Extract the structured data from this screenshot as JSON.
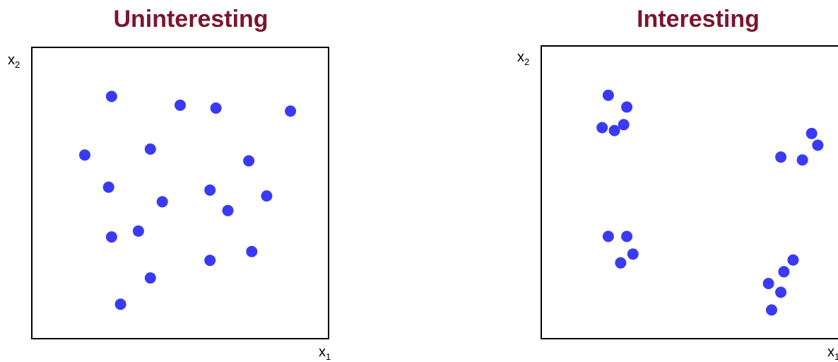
{
  "chart_data": [
    {
      "type": "scatter",
      "title": "Uninteresting",
      "xlabel": "x",
      "xlabel_sub": "1",
      "ylabel": "x",
      "ylabel_sub": "2",
      "xlim": [
        0,
        100
      ],
      "ylim": [
        0,
        100
      ],
      "grid": false,
      "colors": {
        "point": "#3a3af5",
        "title": "#7b1531"
      },
      "points": [
        {
          "x": 27,
          "y": 83
        },
        {
          "x": 50,
          "y": 80
        },
        {
          "x": 62,
          "y": 79
        },
        {
          "x": 87,
          "y": 78
        },
        {
          "x": 18,
          "y": 63
        },
        {
          "x": 40,
          "y": 65
        },
        {
          "x": 73,
          "y": 61
        },
        {
          "x": 26,
          "y": 52
        },
        {
          "x": 60,
          "y": 51
        },
        {
          "x": 79,
          "y": 49
        },
        {
          "x": 44,
          "y": 47
        },
        {
          "x": 66,
          "y": 44
        },
        {
          "x": 27,
          "y": 35
        },
        {
          "x": 36,
          "y": 37
        },
        {
          "x": 60,
          "y": 27
        },
        {
          "x": 74,
          "y": 30
        },
        {
          "x": 40,
          "y": 21
        },
        {
          "x": 30,
          "y": 12
        }
      ]
    },
    {
      "type": "scatter",
      "title": "Interesting",
      "xlabel": "x",
      "xlabel_sub": "1",
      "ylabel": "x",
      "ylabel_sub": "2",
      "xlim": [
        0,
        100
      ],
      "ylim": [
        0,
        100
      ],
      "grid": false,
      "colors": {
        "point": "#3a3af5",
        "title": "#7b1531"
      },
      "points": [
        {
          "x": 22,
          "y": 83
        },
        {
          "x": 28,
          "y": 79
        },
        {
          "x": 27,
          "y": 73
        },
        {
          "x": 20,
          "y": 72
        },
        {
          "x": 24,
          "y": 71
        },
        {
          "x": 88,
          "y": 70
        },
        {
          "x": 90,
          "y": 66
        },
        {
          "x": 78,
          "y": 62
        },
        {
          "x": 85,
          "y": 61
        },
        {
          "x": 22,
          "y": 35
        },
        {
          "x": 28,
          "y": 35
        },
        {
          "x": 30,
          "y": 29
        },
        {
          "x": 26,
          "y": 26
        },
        {
          "x": 82,
          "y": 27
        },
        {
          "x": 79,
          "y": 23
        },
        {
          "x": 74,
          "y": 19
        },
        {
          "x": 78,
          "y": 16
        },
        {
          "x": 75,
          "y": 10
        }
      ]
    }
  ]
}
